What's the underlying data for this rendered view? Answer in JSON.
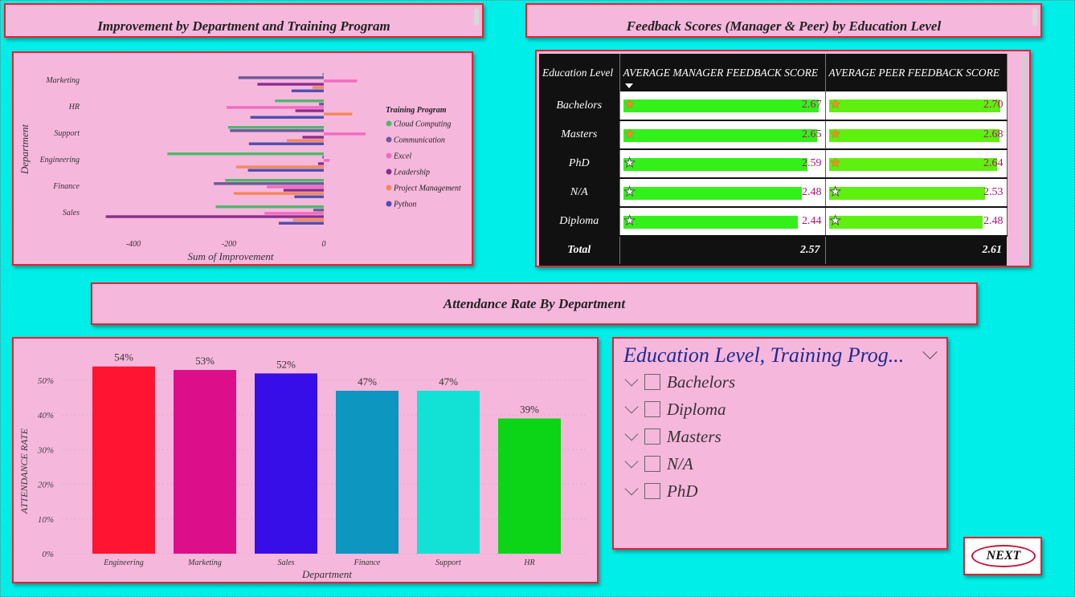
{
  "titles": {
    "improvement": "Improvement by Department and Training Program",
    "feedback": "Feedback Scores (Manager & Peer) by Education Level",
    "attendance": "Attendance Rate By Department"
  },
  "improvement_chart": {
    "ylabel": "Department",
    "xlabel": "Sum of Improvement",
    "legend_title": "Training Program",
    "ticks": [
      "-400",
      "-200",
      "0"
    ]
  },
  "chart_data": [
    {
      "type": "bar",
      "orientation": "horizontal",
      "title": "Improvement by Department and Training Program",
      "xlabel": "Sum of Improvement",
      "ylabel": "Department",
      "categories": [
        "Marketing",
        "HR",
        "Support",
        "Engineering",
        "Finance",
        "Sales"
      ],
      "xlim": [
        -460,
        80
      ],
      "legend_position": "right",
      "series": [
        {
          "name": "Cloud Computing",
          "color": "#4DB86A",
          "values": [
            -3,
            -103,
            -202,
            -330,
            -208,
            -228
          ]
        },
        {
          "name": "Communication",
          "color": "#6A5A9A",
          "values": [
            -180,
            -10,
            -198,
            -3,
            -232,
            -22
          ]
        },
        {
          "name": "Excel",
          "color": "#F06BC0",
          "values": [
            70,
            -205,
            88,
            12,
            -120,
            -125
          ]
        },
        {
          "name": "Leadership",
          "color": "#8A2E8E",
          "values": [
            -140,
            -60,
            -45,
            -12,
            -85,
            -460
          ]
        },
        {
          "name": "Project Management",
          "color": "#F2885A",
          "values": [
            -24,
            60,
            -78,
            -185,
            -190,
            -65
          ]
        },
        {
          "name": "Python",
          "color": "#4A4FB0",
          "values": [
            -68,
            -155,
            -158,
            -160,
            -62,
            -95
          ]
        }
      ]
    },
    {
      "type": "bar",
      "title": "Attendance Rate By Department",
      "xlabel": "Department",
      "ylabel": "ATTENDANCE RATE",
      "categories": [
        "Engineering",
        "Marketing",
        "Sales",
        "Finance",
        "Support",
        "HR"
      ],
      "values": [
        54,
        53,
        52,
        47,
        47,
        39
      ],
      "value_labels": [
        "54%",
        "53%",
        "52%",
        "47%",
        "47%",
        "39%"
      ],
      "colors": [
        "#FF1432",
        "#DC0E8A",
        "#380EE8",
        "#0C96C0",
        "#12E2D6",
        "#0CD416"
      ],
      "ylim": [
        0,
        55
      ],
      "yticks": [
        "0%",
        "10%",
        "20%",
        "30%",
        "40%",
        "50%"
      ],
      "grid": true
    }
  ],
  "feedback_table": {
    "headers": [
      "Education Level",
      "AVERAGE MANAGER FEEDBACK SCORE",
      "AVERAGE PEER FEEDBACK SCORE"
    ],
    "rows": [
      {
        "level": "Bachelors",
        "manager": "2.67",
        "peer": "2.70",
        "manager_star": "orange",
        "peer_star": "orange",
        "manager_frac": 0.985,
        "peer_frac": 0.985
      },
      {
        "level": "Masters",
        "manager": "2.65",
        "peer": "2.68",
        "manager_star": "orange",
        "peer_star": "orange",
        "manager_frac": 0.98,
        "peer_frac": 0.98
      },
      {
        "level": "PhD",
        "manager": "2.59",
        "peer": "2.64",
        "manager_star": "white",
        "peer_star": "orange",
        "manager_frac": 0.93,
        "peer_frac": 0.965
      },
      {
        "level": "N/A",
        "manager": "2.48",
        "peer": "2.53",
        "manager_star": "white",
        "peer_star": "white",
        "manager_frac": 0.905,
        "peer_frac": 0.9
      },
      {
        "level": "Diploma",
        "manager": "2.44",
        "peer": "2.48",
        "manager_star": "white",
        "peer_star": "white",
        "manager_frac": 0.885,
        "peer_frac": 0.885
      }
    ],
    "total": {
      "label": "Total",
      "manager": "2.57",
      "peer": "2.61"
    }
  },
  "slicer": {
    "title": "Education Level, Training Prog...",
    "items": [
      "Bachelors",
      "Diploma",
      "Masters",
      "N/A",
      "PhD"
    ]
  },
  "next_button": {
    "label": "NEXT"
  }
}
